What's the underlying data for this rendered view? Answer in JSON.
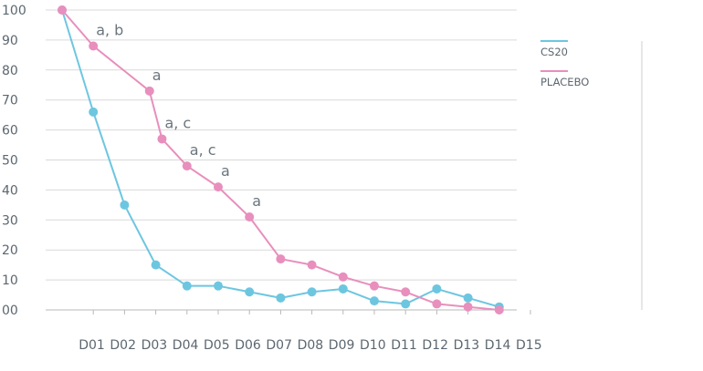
{
  "chart_data": {
    "type": "line",
    "title": "",
    "xlabel": "",
    "ylabel": "",
    "ylim": [
      0,
      100
    ],
    "yticks": [
      "00",
      "10",
      "20",
      "30",
      "40",
      "50",
      "60",
      "70",
      "80",
      "90",
      "100"
    ],
    "categories": [
      "D01",
      "D02",
      "D03",
      "D04",
      "D05",
      "D06",
      "D07",
      "D08",
      "D09",
      "D10",
      "D11",
      "D12",
      "D13",
      "D14",
      "D15"
    ],
    "grid": true,
    "legend_position": "right",
    "series": [
      {
        "name": "CS20",
        "color": "#6dc6e0",
        "x": [
          0,
          1,
          2,
          3,
          4,
          5,
          6,
          7,
          8,
          9,
          10,
          11,
          12,
          13,
          14
        ],
        "values": [
          100,
          66,
          35,
          15,
          8,
          8,
          6,
          4,
          6,
          7,
          3,
          2,
          7,
          4,
          1
        ]
      },
      {
        "name": "PLACEBO",
        "color": "#e88fbd",
        "x": [
          0,
          1,
          2.8,
          3.2,
          4,
          5,
          6,
          7,
          8,
          9,
          10,
          11,
          12,
          13,
          14
        ],
        "values": [
          100,
          88,
          73,
          57,
          48,
          41,
          31,
          17,
          15,
          11,
          8,
          6,
          2,
          1,
          0
        ]
      }
    ],
    "annotations": [
      {
        "text": "a, b",
        "series": "PLACEBO",
        "index": 1
      },
      {
        "text": "a",
        "series": "PLACEBO",
        "index": 2
      },
      {
        "text": "a, c",
        "series": "PLACEBO",
        "index": 3
      },
      {
        "text": "a, c",
        "series": "PLACEBO",
        "index": 4
      },
      {
        "text": "a",
        "series": "PLACEBO",
        "index": 5
      },
      {
        "text": "a",
        "series": "PLACEBO",
        "index": 6
      }
    ]
  }
}
